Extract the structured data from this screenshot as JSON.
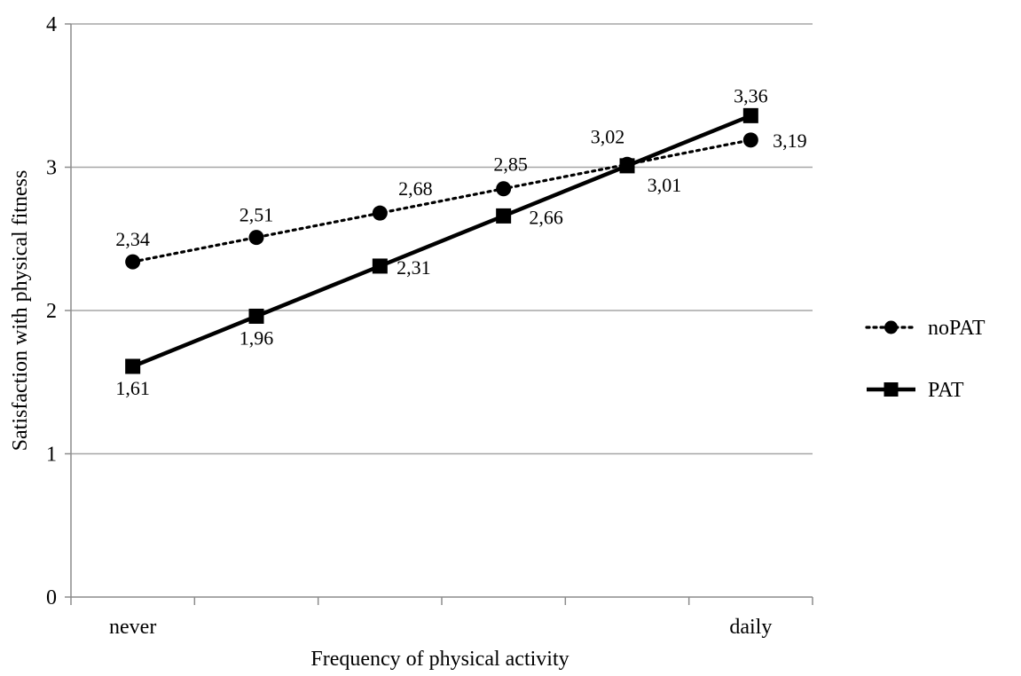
{
  "chart_data": {
    "type": "line",
    "title": "",
    "xlabel": "Frequency of physical activity",
    "ylabel": "Satisfaction with physical fitness",
    "categories": [
      "never",
      "",
      "",
      "",
      "",
      "daily"
    ],
    "ylim": [
      0,
      4
    ],
    "yticks": [
      "0",
      "1",
      "2",
      "3",
      "4"
    ],
    "grid": true,
    "legend_position": "right",
    "series": [
      {
        "name": "noPAT",
        "values": [
          2.34,
          2.51,
          2.68,
          2.85,
          3.02,
          3.19
        ],
        "labels": [
          "2,34",
          "2,51",
          "2,68",
          "2,85",
          "3,02",
          "3,19"
        ],
        "line_style": "dotted",
        "marker": "circle",
        "color": "#000000"
      },
      {
        "name": "PAT",
        "values": [
          1.61,
          1.96,
          2.31,
          2.66,
          3.01,
          3.36
        ],
        "labels": [
          "1,61",
          "1,96",
          "2,31",
          "2,66",
          "3,01",
          "3,36"
        ],
        "line_style": "solid",
        "marker": "square",
        "color": "#000000"
      }
    ],
    "colors": {
      "gridline": "#a6a6a6",
      "axis": "#8c8c8c"
    }
  }
}
